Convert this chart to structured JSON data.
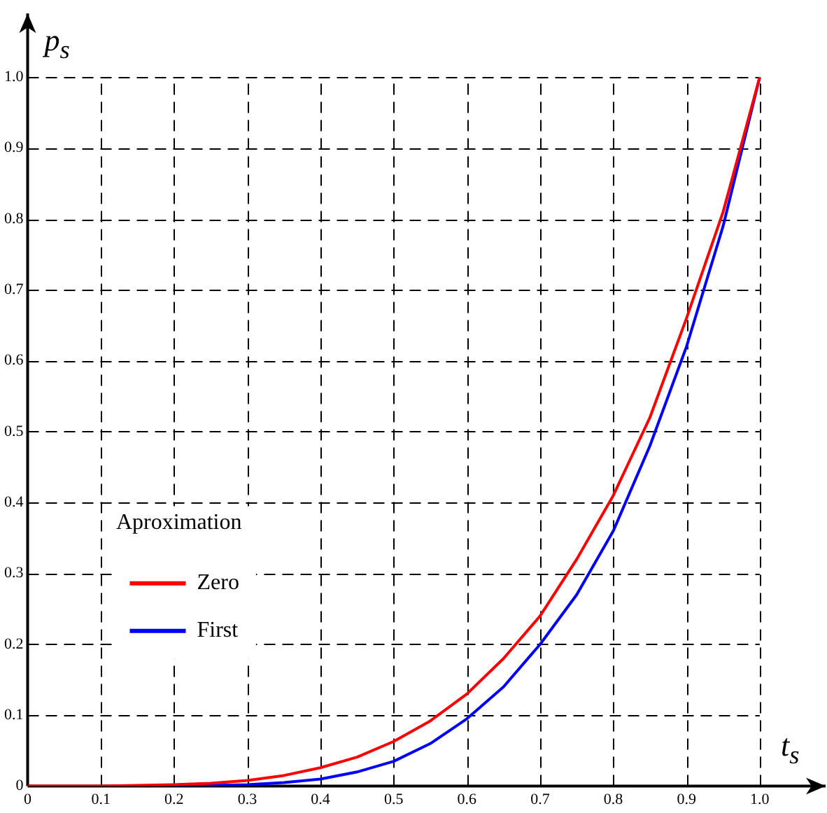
{
  "chart_data": {
    "type": "line",
    "xlabel": "t$_{s}$",
    "ylabel": "p$_{s}$",
    "legend_title": "Aproximation",
    "x": [
      0,
      0.05,
      0.1,
      0.15,
      0.2,
      0.25,
      0.3,
      0.35,
      0.4,
      0.45,
      0.5,
      0.55,
      0.6,
      0.65,
      0.7,
      0.75,
      0.8,
      0.85,
      0.9,
      0.95,
      1
    ],
    "series": [
      {
        "name": "Zero",
        "color": "#ff0000",
        "values": [
          0,
          0,
          0,
          0.001,
          0.002,
          0.004,
          0.008,
          0.015,
          0.026,
          0.041,
          0.063,
          0.092,
          0.13,
          0.18,
          0.24,
          0.32,
          0.41,
          0.52,
          0.66,
          0.81,
          1
        ]
      },
      {
        "name": "First",
        "color": "#0000ff",
        "values": [
          null,
          null,
          null,
          null,
          0,
          0.001,
          0.002,
          0.005,
          0.01,
          0.02,
          0.035,
          0.06,
          0.095,
          0.14,
          0.2,
          0.27,
          0.36,
          0.48,
          0.62,
          0.79,
          1
        ]
      }
    ],
    "xlim": [
      0,
      1.09
    ],
    "ylim": [
      0,
      1.09
    ],
    "xticks": [
      0,
      0.1,
      0.2,
      0.3,
      0.4,
      0.5,
      0.6,
      0.7,
      0.8,
      0.9,
      {
        "value": 1,
        "label": "1.0"
      }
    ],
    "yticks": [
      0,
      0.1,
      0.2,
      0.3,
      0.4,
      0.5,
      0.6,
      0.7,
      0.8,
      0.9,
      {
        "value": 1,
        "label": "1.0"
      }
    ],
    "grid": true,
    "legend": "bottom left",
    "marker": "none",
    "line_style": "solid"
  }
}
